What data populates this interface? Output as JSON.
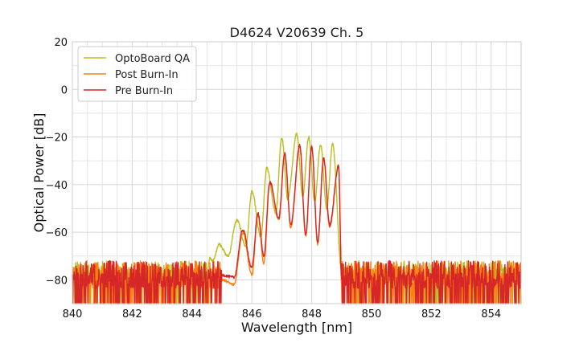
{
  "chart_data": {
    "type": "line",
    "title": "D4624 V20639 Ch. 5",
    "xlabel": "Wavelength [nm]",
    "ylabel": "Optical Power [dB]",
    "xlim": [
      840,
      855
    ],
    "ylim": [
      -90,
      20
    ],
    "xticks": [
      840,
      842,
      844,
      846,
      848,
      850,
      852,
      854
    ],
    "yticks": [
      20,
      0,
      -20,
      -40,
      -60,
      -80
    ],
    "xtick_labels": [
      "840",
      "842",
      "844",
      "846",
      "848",
      "850",
      "852",
      "854"
    ],
    "ytick_labels": [
      "20",
      "0",
      "−20",
      "−40",
      "−60",
      "−80"
    ],
    "grid": true,
    "legend_position": "top-left",
    "noise_floor": {
      "x_range": [
        [
          840,
          844.7
        ],
        [
          849.1,
          855
        ]
      ],
      "mean": -79,
      "min": -90,
      "max": -72
    },
    "series": [
      {
        "name": "OptoBoard QA",
        "color": "#bcbd22",
        "noise_mean": -78,
        "peaks": [
          [
            844.6,
            -71
          ],
          [
            844.9,
            -65
          ],
          [
            845.5,
            -55
          ],
          [
            846.0,
            -43
          ],
          [
            846.5,
            -33
          ],
          [
            847.0,
            -20
          ],
          [
            847.5,
            -18.5
          ],
          [
            847.9,
            -20
          ],
          [
            848.3,
            -23
          ],
          [
            848.7,
            -23
          ]
        ],
        "valleys": [
          [
            844.7,
            -72
          ],
          [
            845.2,
            -70
          ],
          [
            845.8,
            -66
          ],
          [
            846.3,
            -62
          ],
          [
            846.8,
            -52
          ],
          [
            847.2,
            -46
          ],
          [
            847.7,
            -45
          ],
          [
            848.1,
            -47
          ],
          [
            848.5,
            -50
          ]
        ],
        "edges": [
          [
            844.5,
            -78
          ],
          [
            849.0,
            -76
          ]
        ]
      },
      {
        "name": "Post Burn-In",
        "color": "#ff7f0e",
        "noise_mean": -80,
        "peaks": [
          [
            845.7,
            -60
          ],
          [
            846.2,
            -53
          ],
          [
            846.6,
            -39
          ],
          [
            847.1,
            -27
          ],
          [
            847.6,
            -24
          ],
          [
            848.0,
            -24
          ],
          [
            848.4,
            -29
          ],
          [
            848.9,
            -32
          ]
        ],
        "valleys": [
          [
            845.4,
            -82
          ],
          [
            846.0,
            -78
          ],
          [
            846.4,
            -73
          ],
          [
            846.9,
            -55
          ],
          [
            847.3,
            -58
          ],
          [
            847.8,
            -62
          ],
          [
            848.2,
            -65
          ],
          [
            848.6,
            -58
          ]
        ],
        "edges": [
          [
            845.0,
            -80
          ],
          [
            849.0,
            -82
          ]
        ]
      },
      {
        "name": "Pre Burn-In",
        "color": "#d62728",
        "noise_mean": -80,
        "peaks": [
          [
            845.7,
            -59
          ],
          [
            846.2,
            -52
          ],
          [
            846.6,
            -39
          ],
          [
            847.1,
            -27
          ],
          [
            847.6,
            -23.5
          ],
          [
            848.0,
            -24
          ],
          [
            848.4,
            -29
          ],
          [
            848.9,
            -32
          ]
        ],
        "valleys": [
          [
            845.4,
            -79
          ],
          [
            846.0,
            -75
          ],
          [
            846.4,
            -70
          ],
          [
            846.9,
            -54
          ],
          [
            847.3,
            -57
          ],
          [
            847.8,
            -61
          ],
          [
            848.2,
            -64
          ],
          [
            848.6,
            -57
          ]
        ],
        "edges": [
          [
            845.0,
            -78
          ],
          [
            849.0,
            -80
          ]
        ]
      }
    ]
  }
}
